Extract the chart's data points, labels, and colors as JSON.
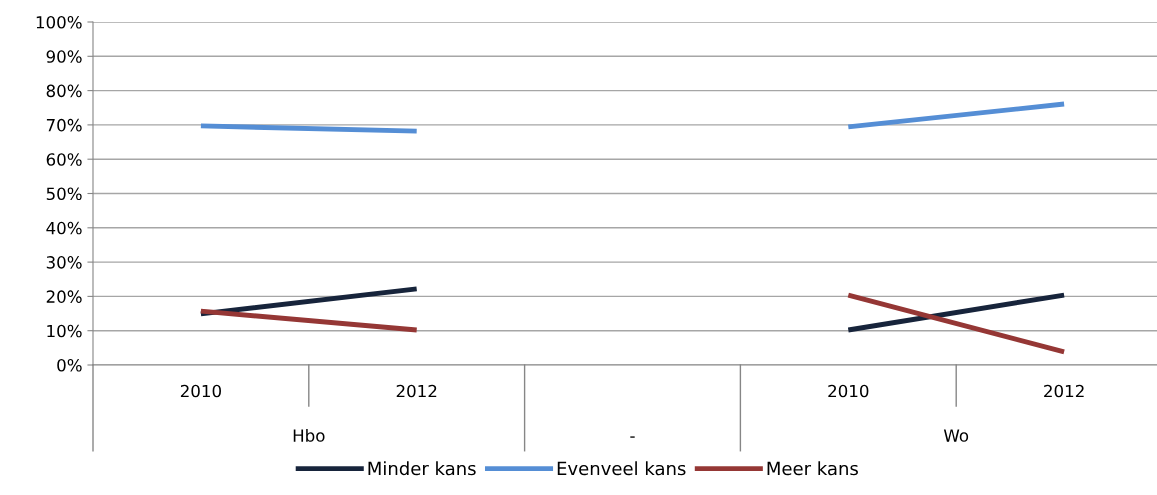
{
  "chart_data": {
    "type": "line",
    "categories": [
      "2010",
      "2012",
      null,
      "2010",
      "2012"
    ],
    "series": [
      {
        "name": "Minder kans",
        "color": "#17243b",
        "values": [
          14.9,
          22.2,
          null,
          10.2,
          20.4
        ]
      },
      {
        "name": "Evenveel kans",
        "color": "#558ed5",
        "values": [
          69.7,
          68.2,
          null,
          69.4,
          76.1
        ]
      },
      {
        "name": "Meer kans",
        "color": "#953735",
        "values": [
          15.7,
          10.2,
          null,
          20.4,
          3.8
        ]
      }
    ],
    "annotations": [
      "Hbo",
      "-",
      "Wo"
    ],
    "ylim": [
      0,
      100
    ],
    "yticks": [
      {
        "value": 0,
        "label": "0%"
      },
      {
        "value": 10,
        "label": "10%"
      },
      {
        "value": 20,
        "label": "20%"
      },
      {
        "value": 30,
        "label": "30%"
      },
      {
        "value": 40,
        "label": "40%"
      },
      {
        "value": 50,
        "label": "50%"
      },
      {
        "value": 60,
        "label": "60%"
      },
      {
        "value": 70,
        "label": "70%"
      },
      {
        "value": 80,
        "label": "80%"
      },
      {
        "value": 90,
        "label": "90%"
      },
      {
        "value": 100,
        "label": "100%"
      }
    ],
    "grid": "y",
    "legend": "bottom",
    "marker": "none",
    "line_style": "solid"
  }
}
